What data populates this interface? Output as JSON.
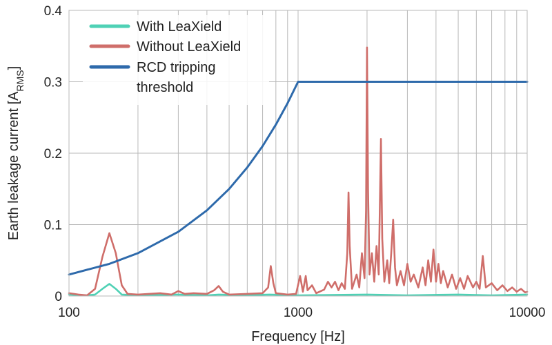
{
  "chart_data": {
    "type": "line",
    "title": "",
    "xlabel": "Frequency [Hz]",
    "ylabel_main": "Earth leakage current [A",
    "ylabel_sub": "RMS",
    "ylabel_close": "]",
    "xscale": "log",
    "xlim": [
      100,
      10000
    ],
    "ylim": [
      0,
      0.4
    ],
    "x_ticks": [
      100,
      1000,
      10000
    ],
    "x_tick_labels": [
      "100",
      "1000",
      "10000"
    ],
    "y_ticks": [
      0,
      0.1,
      0.2,
      0.3,
      0.4
    ],
    "y_tick_labels": [
      "0",
      "0.1",
      "0.2",
      "0.3",
      "0.4"
    ],
    "grid": {
      "vertical_minor": true,
      "horizontal_major": true
    },
    "legend": {
      "position": "top-left",
      "entries": [
        {
          "series": "with",
          "lines": [
            "With LeaXield"
          ]
        },
        {
          "series": "without",
          "lines": [
            "Without LeaXield"
          ]
        },
        {
          "series": "threshold",
          "lines": [
            "RCD tripping",
            "threshold"
          ]
        }
      ]
    },
    "series": [
      {
        "key": "threshold",
        "name": "RCD tripping threshold",
        "color": "#2e6aab",
        "points": [
          [
            100,
            0.03
          ],
          [
            150,
            0.045
          ],
          [
            200,
            0.06
          ],
          [
            300,
            0.09
          ],
          [
            400,
            0.12
          ],
          [
            500,
            0.15
          ],
          [
            600,
            0.18
          ],
          [
            700,
            0.21
          ],
          [
            800,
            0.24
          ],
          [
            900,
            0.27
          ],
          [
            1000,
            0.3
          ],
          [
            10000,
            0.3
          ]
        ]
      },
      {
        "key": "with",
        "name": "With LeaXield",
        "color": "#4fd1b5",
        "points": [
          [
            100,
            0.002
          ],
          [
            120,
            0.001
          ],
          [
            130,
            0.002
          ],
          [
            140,
            0.01
          ],
          [
            150,
            0.017
          ],
          [
            160,
            0.01
          ],
          [
            170,
            0.002
          ],
          [
            200,
            0.001
          ],
          [
            300,
            0.002
          ],
          [
            400,
            0.001
          ],
          [
            450,
            0.002
          ],
          [
            600,
            0.001
          ],
          [
            750,
            0.002
          ],
          [
            1000,
            0.001
          ],
          [
            2000,
            0.002
          ],
          [
            3000,
            0.001
          ],
          [
            5000,
            0.002
          ],
          [
            7000,
            0.001
          ],
          [
            10000,
            0.002
          ]
        ]
      },
      {
        "key": "without",
        "name": "Without LeaXield",
        "color": "#cf6e6a",
        "points": [
          [
            100,
            0.004
          ],
          [
            110,
            0.002
          ],
          [
            120,
            0.001
          ],
          [
            130,
            0.01
          ],
          [
            140,
            0.055
          ],
          [
            150,
            0.088
          ],
          [
            160,
            0.06
          ],
          [
            170,
            0.015
          ],
          [
            180,
            0.003
          ],
          [
            200,
            0.002
          ],
          [
            250,
            0.004
          ],
          [
            280,
            0.002
          ],
          [
            300,
            0.007
          ],
          [
            320,
            0.003
          ],
          [
            350,
            0.004
          ],
          [
            400,
            0.003
          ],
          [
            430,
            0.008
          ],
          [
            450,
            0.014
          ],
          [
            470,
            0.006
          ],
          [
            500,
            0.002
          ],
          [
            600,
            0.003
          ],
          [
            700,
            0.004
          ],
          [
            740,
            0.012
          ],
          [
            760,
            0.042
          ],
          [
            780,
            0.018
          ],
          [
            800,
            0.004
          ],
          [
            900,
            0.002
          ],
          [
            980,
            0.003
          ],
          [
            1020,
            0.028
          ],
          [
            1050,
            0.006
          ],
          [
            1080,
            0.028
          ],
          [
            1100,
            0.008
          ],
          [
            1150,
            0.015
          ],
          [
            1200,
            0.004
          ],
          [
            1300,
            0.009
          ],
          [
            1350,
            0.02
          ],
          [
            1400,
            0.012
          ],
          [
            1450,
            0.02
          ],
          [
            1500,
            0.008
          ],
          [
            1550,
            0.018
          ],
          [
            1600,
            0.01
          ],
          [
            1640,
            0.06
          ],
          [
            1660,
            0.145
          ],
          [
            1680,
            0.07
          ],
          [
            1720,
            0.01
          ],
          [
            1800,
            0.03
          ],
          [
            1850,
            0.012
          ],
          [
            1900,
            0.06
          ],
          [
            1950,
            0.025
          ],
          [
            1980,
            0.12
          ],
          [
            2000,
            0.348
          ],
          [
            2020,
            0.15
          ],
          [
            2050,
            0.03
          ],
          [
            2100,
            0.06
          ],
          [
            2150,
            0.02
          ],
          [
            2200,
            0.07
          ],
          [
            2250,
            0.03
          ],
          [
            2300,
            0.22
          ],
          [
            2330,
            0.08
          ],
          [
            2380,
            0.02
          ],
          [
            2450,
            0.05
          ],
          [
            2500,
            0.018
          ],
          [
            2550,
            0.06
          ],
          [
            2600,
            0.107
          ],
          [
            2650,
            0.04
          ],
          [
            2700,
            0.015
          ],
          [
            2800,
            0.035
          ],
          [
            2900,
            0.015
          ],
          [
            3000,
            0.045
          ],
          [
            3100,
            0.02
          ],
          [
            3200,
            0.03
          ],
          [
            3350,
            0.012
          ],
          [
            3500,
            0.04
          ],
          [
            3600,
            0.015
          ],
          [
            3700,
            0.05
          ],
          [
            3800,
            0.02
          ],
          [
            3900,
            0.065
          ],
          [
            4000,
            0.02
          ],
          [
            4100,
            0.045
          ],
          [
            4200,
            0.018
          ],
          [
            4300,
            0.035
          ],
          [
            4500,
            0.012
          ],
          [
            4700,
            0.03
          ],
          [
            4900,
            0.01
          ],
          [
            5100,
            0.025
          ],
          [
            5300,
            0.01
          ],
          [
            5500,
            0.028
          ],
          [
            5800,
            0.012
          ],
          [
            6000,
            0.02
          ],
          [
            6200,
            0.01
          ],
          [
            6400,
            0.056
          ],
          [
            6600,
            0.012
          ],
          [
            7000,
            0.018
          ],
          [
            7400,
            0.008
          ],
          [
            7800,
            0.015
          ],
          [
            8200,
            0.007
          ],
          [
            8600,
            0.012
          ],
          [
            9000,
            0.006
          ],
          [
            9400,
            0.01
          ],
          [
            9800,
            0.005
          ],
          [
            10000,
            0.006
          ]
        ]
      }
    ]
  }
}
